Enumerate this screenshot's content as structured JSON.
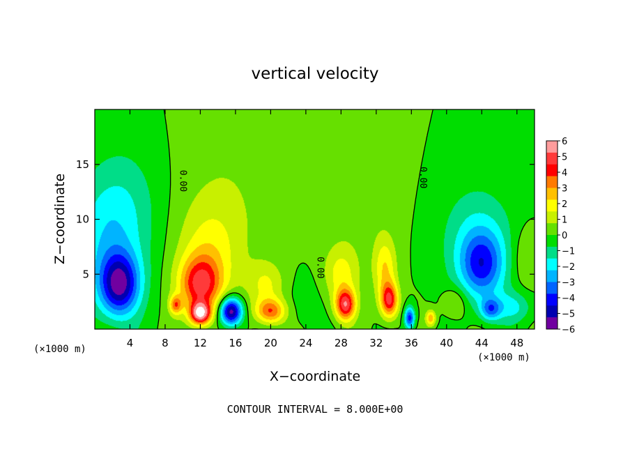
{
  "chart_data": {
    "type": "heatmap",
    "title": "vertical velocity",
    "xlabel": "X−coordinate",
    "ylabel": "Z−coordinate",
    "x_unit_left": "(×1000 m)",
    "x_unit_right": "(×1000 m)",
    "xlim": [
      0,
      50
    ],
    "ylim": [
      0,
      20
    ],
    "x_ticks": [
      4,
      8,
      12,
      16,
      20,
      24,
      28,
      32,
      36,
      40,
      44,
      48
    ],
    "y_ticks": [
      5,
      10,
      15
    ],
    "footer": "CONTOUR INTERVAL = 8.000E+00",
    "contour_label": "0.00",
    "contour_label_positions": [
      {
        "x": 9.7,
        "z": 13.5
      },
      {
        "x": 25.3,
        "z": 5.6
      },
      {
        "x": 37.0,
        "z": 13.8
      }
    ],
    "colorbar": {
      "min": -6,
      "max": 6,
      "labels": [
        "6",
        "5",
        "4",
        "3",
        "2",
        "1",
        "0",
        "−1",
        "−2",
        "−3",
        "−4",
        "−5",
        "−6"
      ],
      "colors": [
        "#ff9c9c",
        "#ff3a3a",
        "#ff0000",
        "#ff7a00",
        "#ffc000",
        "#ffff00",
        "#c8f000",
        "#66e000",
        "#00dd00",
        "#00dd88",
        "#00ffff",
        "#00b4ff",
        "#0064ff",
        "#0000ff",
        "#0000b0",
        "#7000a0"
      ]
    },
    "features": [
      {
        "x": 2.8,
        "z": 4.0,
        "w": -4.9,
        "sx": 1.6,
        "sz": 2.0
      },
      {
        "x": 1.5,
        "z": 8.0,
        "w": -1.8,
        "sx": 3.0,
        "sz": 4.0
      },
      {
        "x": 3.5,
        "z": 12.0,
        "w": -0.8,
        "sx": 3.0,
        "sz": 4.0
      },
      {
        "x": 12.0,
        "z": 4.0,
        "w": 4.2,
        "sx": 1.7,
        "sz": 1.8
      },
      {
        "x": 12.0,
        "z": 1.4,
        "w": 5.6,
        "sx": 0.8,
        "sz": 0.7
      },
      {
        "x": 13.0,
        "z": 7.0,
        "w": 1.5,
        "sx": 2.5,
        "sz": 3.0
      },
      {
        "x": 15.5,
        "z": 1.6,
        "w": -6.0,
        "sx": 0.9,
        "sz": 0.9
      },
      {
        "x": 15.0,
        "z": 12.0,
        "w": 0.7,
        "sx": 4.0,
        "sz": 5.0
      },
      {
        "x": 9.2,
        "z": 2.2,
        "w": 3.0,
        "sx": 0.5,
        "sz": 0.6
      },
      {
        "x": 20.0,
        "z": 1.6,
        "w": 3.5,
        "sx": 1.2,
        "sz": 0.8
      },
      {
        "x": 19.5,
        "z": 4.0,
        "w": 1.6,
        "sx": 1.5,
        "sz": 1.5
      },
      {
        "x": 28.5,
        "z": 2.2,
        "w": 4.8,
        "sx": 0.8,
        "sz": 1.0
      },
      {
        "x": 28.0,
        "z": 5.0,
        "w": 1.8,
        "sx": 1.4,
        "sz": 1.8
      },
      {
        "x": 33.5,
        "z": 2.6,
        "w": 4.3,
        "sx": 0.7,
        "sz": 1.1
      },
      {
        "x": 33.0,
        "z": 5.5,
        "w": 2.2,
        "sx": 0.9,
        "sz": 2.0
      },
      {
        "x": 30.0,
        "z": 12.0,
        "w": 0.6,
        "sx": 3.0,
        "sz": 4.0
      },
      {
        "x": 35.8,
        "z": 1.0,
        "w": -4.2,
        "sx": 0.4,
        "sz": 0.7
      },
      {
        "x": 38.2,
        "z": 1.0,
        "w": 2.8,
        "sx": 0.4,
        "sz": 0.5
      },
      {
        "x": 44.0,
        "z": 5.8,
        "w": -3.5,
        "sx": 1.8,
        "sz": 2.2
      },
      {
        "x": 43.5,
        "z": 8.5,
        "w": -1.4,
        "sx": 3.0,
        "sz": 3.5
      },
      {
        "x": 45.0,
        "z": 1.8,
        "w": -2.8,
        "sx": 0.8,
        "sz": 0.7
      },
      {
        "x": 47.5,
        "z": 2.0,
        "w": -1.6,
        "sx": 1.5,
        "sz": 1.0
      },
      {
        "x": 49.0,
        "z": 6.5,
        "w": 0.9,
        "sx": 1.2,
        "sz": 2.0
      },
      {
        "x": 23.5,
        "z": 2.5,
        "w": -0.4,
        "sx": 2.0,
        "sz": 2.0
      },
      {
        "x": 41.0,
        "z": 2.5,
        "w": 1.2,
        "sx": 1.0,
        "sz": 1.0
      }
    ]
  }
}
